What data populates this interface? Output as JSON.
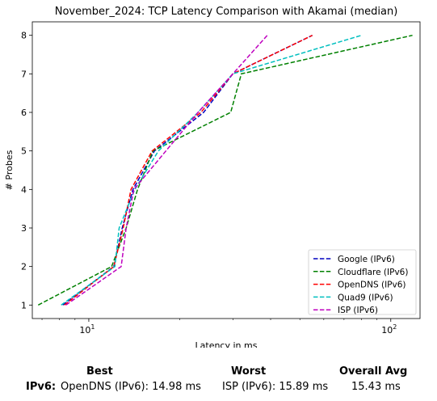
{
  "chart_data": {
    "type": "line",
    "title": "November_2024: TCP Latency Comparison with Akamai (median)",
    "xlabel": "Latency in ms",
    "ylabel": "# Probes",
    "xscale": "log",
    "xlim": [
      6.5,
      125
    ],
    "ylim": [
      0.65,
      8.35
    ],
    "xticks": [
      {
        "value": 10,
        "base": "10",
        "exp": "1"
      },
      {
        "value": 100,
        "base": "10",
        "exp": "2"
      }
    ],
    "yticks": [
      1,
      2,
      3,
      4,
      5,
      6,
      7,
      8
    ],
    "grid": false,
    "legend": "lower-right",
    "series": [
      {
        "name": "Google (IPv6)",
        "color": "#0000bf",
        "dash": "dashed",
        "points": [
          [
            8.2,
            1
          ],
          [
            12.1,
            2
          ],
          [
            12.9,
            3
          ],
          [
            14.0,
            4
          ],
          [
            16.5,
            5
          ],
          [
            24,
            6
          ],
          [
            30,
            7
          ],
          [
            55,
            8
          ]
        ]
      },
      {
        "name": "Cloudflare (IPv6)",
        "color": "#008000",
        "dash": "dashed",
        "points": [
          [
            6.8,
            1
          ],
          [
            11.9,
            2
          ],
          [
            13.3,
            3
          ],
          [
            14.5,
            4
          ],
          [
            16.3,
            5
          ],
          [
            29.5,
            6
          ],
          [
            32,
            7
          ],
          [
            118,
            8
          ]
        ]
      },
      {
        "name": "OpenDNS (IPv6)",
        "color": "#ff0000",
        "dash": "dashed",
        "points": [
          [
            8.3,
            1
          ],
          [
            12.1,
            2
          ],
          [
            13.0,
            3
          ],
          [
            13.8,
            4
          ],
          [
            16.2,
            5
          ],
          [
            23.5,
            6
          ],
          [
            30,
            7
          ],
          [
            55,
            8
          ]
        ]
      },
      {
        "name": "Quad9 (IPv6)",
        "color": "#00bfbf",
        "dash": "dashed",
        "points": [
          [
            8.1,
            1
          ],
          [
            12.2,
            2
          ],
          [
            12.6,
            3
          ],
          [
            14.2,
            4
          ],
          [
            17.0,
            5
          ],
          [
            23,
            6
          ],
          [
            30,
            7
          ],
          [
            80,
            8
          ]
        ]
      },
      {
        "name": "ISP (IPv6)",
        "color": "#bf00bf",
        "dash": "dashed",
        "points": [
          [
            8.4,
            1
          ],
          [
            12.8,
            2
          ],
          [
            13.3,
            3
          ],
          [
            14.1,
            4
          ],
          [
            18,
            5
          ],
          [
            23,
            6
          ],
          [
            30,
            7
          ],
          [
            39,
            8
          ]
        ]
      }
    ]
  },
  "stats": {
    "best_header": "Best",
    "worst_header": "Worst",
    "avg_header": "Overall Avg",
    "row_label": "IPv6:",
    "best_value": "OpenDNS (IPv6): 14.98 ms",
    "worst_value": "ISP (IPv6): 15.89 ms",
    "avg_value": "15.43 ms"
  }
}
